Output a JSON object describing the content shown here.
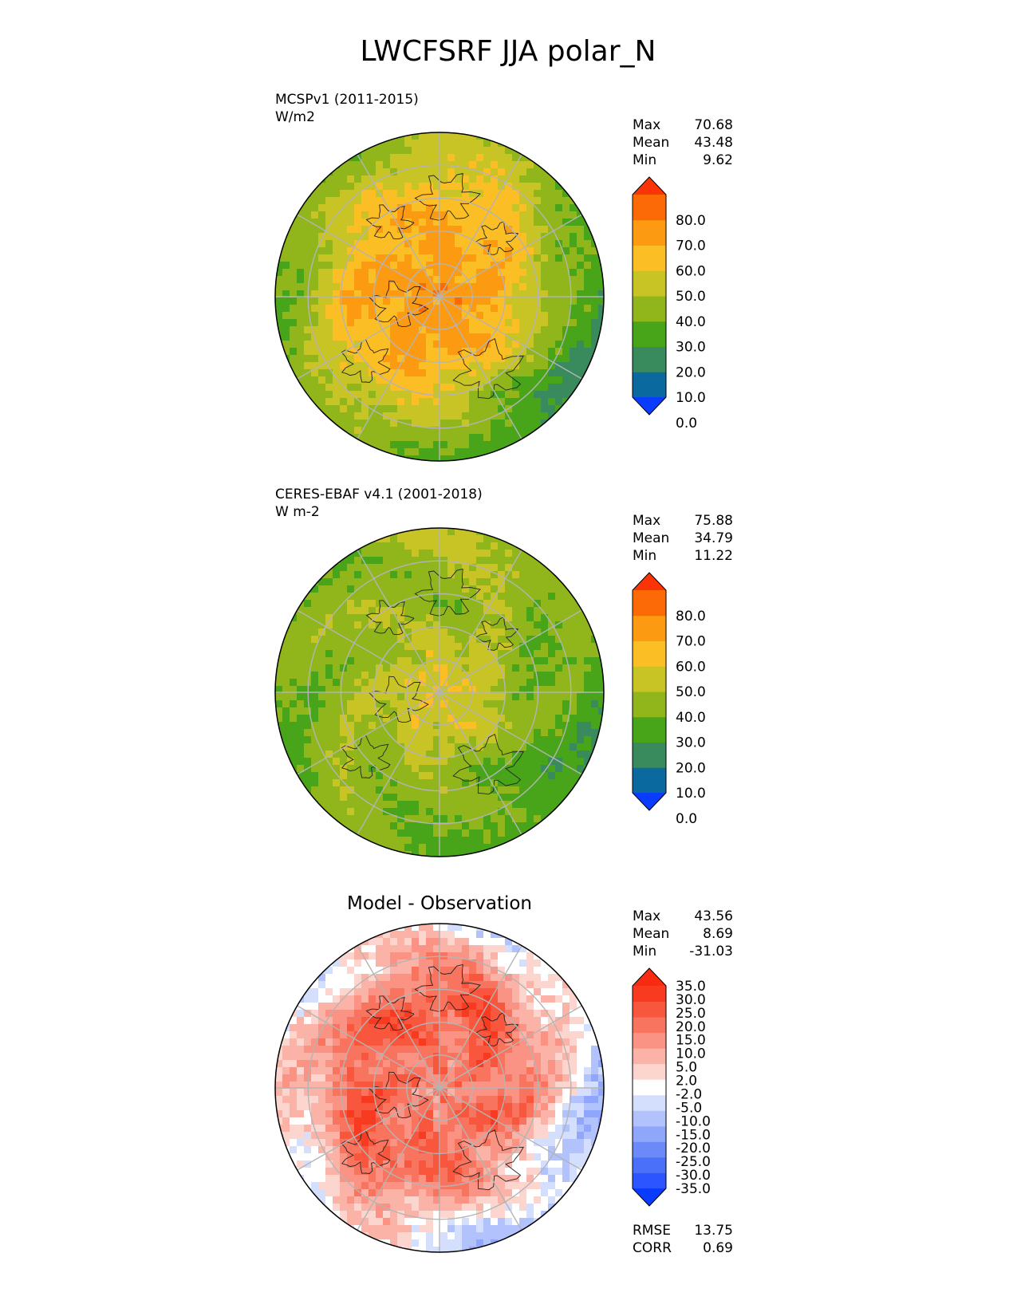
{
  "title": "LWCFSRF JJA polar_N",
  "colors": {
    "main_cbar": [
      "#0a3cff",
      "#0a6aa0",
      "#398a5c",
      "#48a519",
      "#91b61c",
      "#c9c425",
      "#fcbe25",
      "#fc9a12",
      "#fb6a07",
      "#fb3408"
    ],
    "diff_cbar": [
      "#0a3cff",
      "#2c55ff",
      "#4a6ff8",
      "#6c89f8",
      "#8fa6fb",
      "#b2c2fc",
      "#d4dffd",
      "#ffffff",
      "#fdd5cf",
      "#fbb3a8",
      "#fa9384",
      "#f8745f",
      "#f8563d",
      "#f83a20",
      "#f82a10"
    ],
    "grid": "#b4b4b4",
    "coast": "#222222"
  },
  "panels": [
    {
      "name_line1": "MCSPv1 (2011-2015)",
      "name_line2": "W/m2",
      "stats": [
        {
          "label": "Max",
          "value": "70.68"
        },
        {
          "label": "Mean",
          "value": "43.48"
        },
        {
          "label": "Min",
          "value": "9.62"
        }
      ],
      "colorbar_ticks": [
        "80.0",
        "70.0",
        "60.0",
        "50.0",
        "40.0",
        "30.0",
        "20.0",
        "10.0",
        "0.0"
      ],
      "field": {
        "pole": 66,
        "mid": 58,
        "edge": 40,
        "pacific": 18,
        "atlantic": 28
      }
    },
    {
      "name_line1": "CERES-EBAF v4.1 (2001-2018)",
      "name_line2": "W m-2",
      "stats": [
        {
          "label": "Max",
          "value": "75.88"
        },
        {
          "label": "Mean",
          "value": "34.79"
        },
        {
          "label": "Min",
          "value": "11.22"
        }
      ],
      "colorbar_ticks": [
        "80.0",
        "70.0",
        "60.0",
        "50.0",
        "40.0",
        "30.0",
        "20.0",
        "10.0",
        "0.0"
      ],
      "field": {
        "pole": 52,
        "mid": 36,
        "edge": 40,
        "pacific": 22,
        "atlantic": 26
      }
    },
    {
      "title": "Model - Observation",
      "stats": [
        {
          "label": "Max",
          "value": "43.56"
        },
        {
          "label": "Mean",
          "value": "8.69"
        },
        {
          "label": "Min",
          "value": "-31.03"
        }
      ],
      "colorbar_ticks": [
        "35.0",
        "30.0",
        "25.0",
        "20.0",
        "15.0",
        "10.0",
        "5.0",
        "2.0",
        "-2.0",
        "-5.0",
        "-10.0",
        "-15.0",
        "-20.0",
        "-25.0",
        "-30.0",
        "-35.0"
      ],
      "metrics": [
        {
          "label": "RMSE",
          "value": "13.75"
        },
        {
          "label": "CORR",
          "value": "0.69"
        }
      ],
      "field": {
        "pole": 14,
        "mid": 22,
        "edge": 0,
        "pacific": -6,
        "atlantic": 3
      }
    }
  ],
  "chart_data": [
    {
      "type": "heatmap",
      "projection": "north polar stereographic",
      "name_line1": "MCSPv1 (2011-2015)",
      "units": "W/m2",
      "levels": [
        0,
        10,
        20,
        30,
        40,
        50,
        60,
        70,
        80
      ],
      "extend": "both",
      "stats": {
        "max": 70.68,
        "mean": 43.48,
        "min": 9.62
      }
    },
    {
      "type": "heatmap",
      "projection": "north polar stereographic",
      "name_line1": "CERES-EBAF v4.1 (2001-2018)",
      "units": "W m-2",
      "levels": [
        0,
        10,
        20,
        30,
        40,
        50,
        60,
        70,
        80
      ],
      "extend": "both",
      "stats": {
        "max": 75.88,
        "mean": 34.79,
        "min": 11.22
      }
    },
    {
      "type": "heatmap",
      "projection": "north polar stereographic",
      "title": "Model - Observation",
      "levels": [
        -35,
        -30,
        -25,
        -20,
        -15,
        -10,
        -5,
        -2,
        2,
        5,
        10,
        15,
        20,
        25,
        30,
        35
      ],
      "extend": "both",
      "stats": {
        "max": 43.56,
        "mean": 8.69,
        "min": -31.03
      },
      "rmse": 13.75,
      "corr": 0.69
    }
  ]
}
